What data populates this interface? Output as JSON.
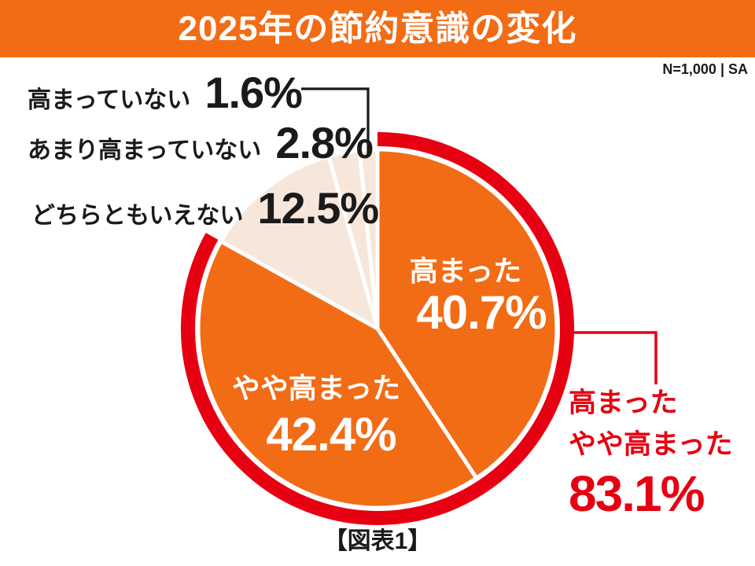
{
  "header": {
    "title": "2025年の節約意識の変化",
    "sample_note": "N=1,000 | SA"
  },
  "colors": {
    "accent_orange": "#F26C15",
    "accent_red": "#E60012",
    "muted_cream": "#F7E7DA",
    "text_black": "#1A1A1A",
    "slice_gap_white": "#FFFFFF"
  },
  "chart_data": {
    "type": "pie",
    "title": "2025年の節約意識の変化",
    "sample_note": "N=1,000 | SA",
    "start_angle_deg": 0,
    "direction": "clockwise",
    "segments": [
      {
        "label": "高まった",
        "value": 40.7,
        "value_pct": "40.7%",
        "color": "#F26C15"
      },
      {
        "label": "やや高まった",
        "value": 42.4,
        "value_pct": "42.4%",
        "color": "#F26C15"
      },
      {
        "label": "どちらともいえない",
        "value": 12.5,
        "value_pct": "12.5%",
        "color": "#F7E7DA"
      },
      {
        "label": "あまり高まっていない",
        "value": 2.8,
        "value_pct": "2.8%",
        "color": "#F7E7DA"
      },
      {
        "label": "高まっていない",
        "value": 1.6,
        "value_pct": "1.6%",
        "color": "#F7E7DA"
      }
    ],
    "highlight": {
      "label": "高まった＋やや高まった",
      "value": 83.1,
      "value_pct": "83.1%",
      "segments": [
        0,
        1
      ],
      "color": "#E60012"
    }
  },
  "annotation": {
    "line1": "高まった",
    "line2": "やや高まった",
    "value_pct": "83.1%"
  },
  "caption": "【図表1】"
}
